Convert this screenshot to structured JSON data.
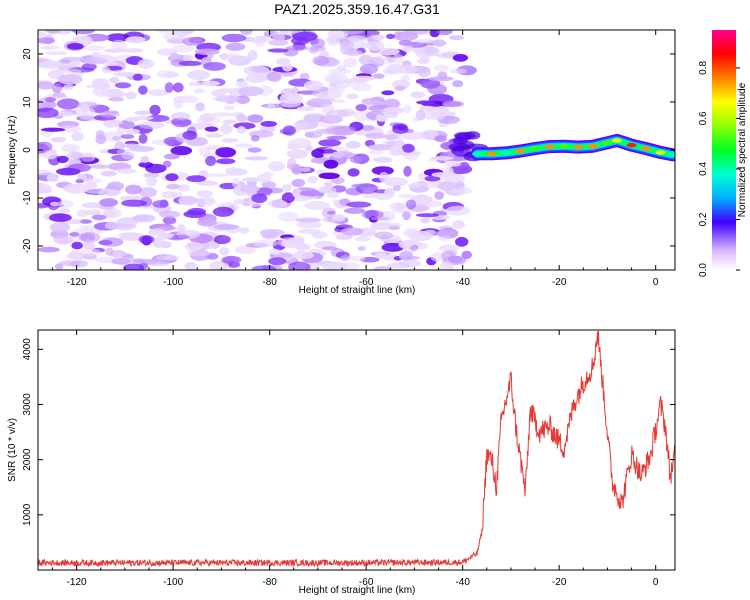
{
  "title": "PAZ1.2025.359.16.47.G31",
  "chart_data": [
    {
      "type": "heatmap",
      "description_of_pattern": "noise",
      "xlabel": "Height of straight line (km)",
      "ylabel": "Frequency (Hz)",
      "xlim": [
        -128,
        4
      ],
      "ylim": [
        -25,
        25
      ],
      "x_ticks": [
        -120,
        -100,
        -80,
        -60,
        -40,
        -20,
        0
      ],
      "x_tick_labels": [
        "-120",
        "-100",
        "-80",
        "-60",
        "-40",
        "-20",
        "0"
      ],
      "y_ticks": [
        20,
        10,
        0,
        -10,
        -20
      ],
      "y_tick_labels": [
        "20",
        "10",
        "0",
        "-10",
        "-20"
      ],
      "noise_region_x": [
        -128,
        -42
      ],
      "signal_track": [
        {
          "x": -37,
          "y": -0.8,
          "amp": 0.45
        },
        {
          "x": -34,
          "y": -0.8,
          "amp": 0.7
        },
        {
          "x": -31,
          "y": -0.6,
          "amp": 0.45
        },
        {
          "x": -28,
          "y": -0.2,
          "amp": 0.75
        },
        {
          "x": -25,
          "y": 0.3,
          "amp": 0.55
        },
        {
          "x": -22,
          "y": 0.7,
          "amp": 0.7
        },
        {
          "x": -19,
          "y": 0.8,
          "amp": 0.5
        },
        {
          "x": -16,
          "y": 0.6,
          "amp": 0.7
        },
        {
          "x": -13,
          "y": 0.8,
          "amp": 0.75
        },
        {
          "x": -10,
          "y": 1.5,
          "amp": 0.55
        },
        {
          "x": -8,
          "y": 2.0,
          "amp": 0.6
        },
        {
          "x": -5,
          "y": 1.0,
          "amp": 0.85
        },
        {
          "x": -2,
          "y": 0.3,
          "amp": 0.7
        },
        {
          "x": 1,
          "y": -0.5,
          "amp": 0.6
        },
        {
          "x": 3.5,
          "y": -1.0,
          "amp": 0.45
        }
      ],
      "colorbar": {
        "label": "Normalized spectral amplitude",
        "range": [
          0.0,
          0.95
        ],
        "ticks": [
          0.0,
          0.2,
          0.4,
          0.6,
          0.8
        ],
        "tick_labels": [
          "0.0",
          "0.2",
          "0.4",
          "0.6",
          "0.8"
        ]
      }
    },
    {
      "type": "line",
      "xlabel": "Height of straight line (km)",
      "ylabel": "SNR (10 * v/v)",
      "xlim": [
        -128,
        4
      ],
      "ylim": [
        0,
        4350
      ],
      "x_ticks": [
        -120,
        -100,
        -80,
        -60,
        -40,
        -20,
        0
      ],
      "x_tick_labels": [
        "-120",
        "-100",
        "-80",
        "-60",
        "-40",
        "-20",
        "0"
      ],
      "y_ticks": [
        1000,
        2000,
        3000,
        4000
      ],
      "y_tick_labels": [
        "1000",
        "2000",
        "3000",
        "4000"
      ],
      "color": "#e53935",
      "series_keypoints": [
        {
          "x": -128,
          "y": 130
        },
        {
          "x": -60,
          "y": 130
        },
        {
          "x": -40,
          "y": 140
        },
        {
          "x": -37,
          "y": 300
        },
        {
          "x": -36,
          "y": 700
        },
        {
          "x": -35,
          "y": 2100
        },
        {
          "x": -34,
          "y": 2000
        },
        {
          "x": -33,
          "y": 1500
        },
        {
          "x": -32,
          "y": 2700
        },
        {
          "x": -30,
          "y": 3450
        },
        {
          "x": -29,
          "y": 2600
        },
        {
          "x": -27,
          "y": 1400
        },
        {
          "x": -26,
          "y": 2900
        },
        {
          "x": -24,
          "y": 2500
        },
        {
          "x": -22,
          "y": 2600
        },
        {
          "x": -19,
          "y": 2200
        },
        {
          "x": -17,
          "y": 3000
        },
        {
          "x": -15,
          "y": 3400
        },
        {
          "x": -13,
          "y": 3700
        },
        {
          "x": -12,
          "y": 4300
        },
        {
          "x": -10,
          "y": 2500
        },
        {
          "x": -9,
          "y": 1600
        },
        {
          "x": -7,
          "y": 1200
        },
        {
          "x": -5,
          "y": 2100
        },
        {
          "x": -3,
          "y": 1700
        },
        {
          "x": -1,
          "y": 2100
        },
        {
          "x": 1,
          "y": 3000
        },
        {
          "x": 2,
          "y": 2600
        },
        {
          "x": 3,
          "y": 1700
        },
        {
          "x": 4,
          "y": 2100
        }
      ]
    }
  ]
}
